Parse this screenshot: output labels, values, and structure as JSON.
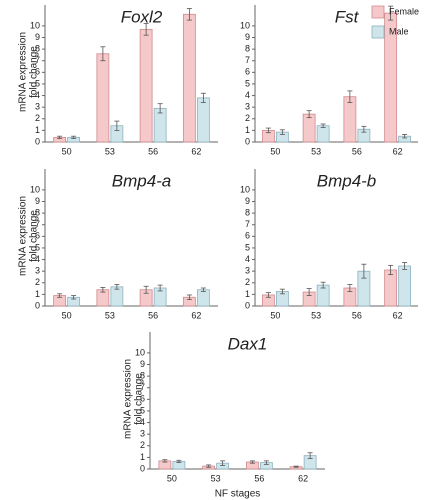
{
  "chart_data": [
    {
      "type": "bar",
      "title": "Foxl2",
      "ylabel": [
        "mRNA expression",
        "fold change"
      ],
      "categories": [
        "50",
        "53",
        "56",
        "62"
      ],
      "series": [
        {
          "name": "Female",
          "color": "#f5c8ca",
          "values": [
            0.4,
            7.6,
            9.7,
            11.0
          ],
          "errors": [
            0.1,
            0.6,
            0.5,
            0.5
          ]
        },
        {
          "name": "Male",
          "color": "#cfe5ec",
          "values": [
            0.4,
            1.4,
            2.9,
            3.8
          ],
          "errors": [
            0.1,
            0.4,
            0.4,
            0.4
          ]
        }
      ],
      "ylim": [
        0,
        11.8
      ],
      "yticks": [
        0,
        1,
        2,
        3,
        4,
        5,
        6,
        7,
        8,
        9,
        10
      ]
    },
    {
      "type": "bar",
      "title": "Fst",
      "categories": [
        "50",
        "53",
        "56",
        "62"
      ],
      "legend": "upper right",
      "series": [
        {
          "name": "Female",
          "color": "#f5c8ca",
          "values": [
            1.0,
            2.4,
            3.9,
            11.1
          ],
          "errors": [
            0.2,
            0.3,
            0.5,
            0.6
          ]
        },
        {
          "name": "Male",
          "color": "#cfe5ec",
          "values": [
            0.85,
            1.4,
            1.1,
            0.5
          ],
          "errors": [
            0.2,
            0.15,
            0.25,
            0.15
          ]
        }
      ],
      "ylim": [
        0,
        11.8
      ],
      "yticks": [
        0,
        1,
        2,
        3,
        4,
        5,
        6,
        7,
        8,
        9,
        10
      ]
    },
    {
      "type": "bar",
      "title": "Bmp4-a",
      "ylabel": [
        "mRNA expression",
        "fold change"
      ],
      "categories": [
        "50",
        "53",
        "56",
        "62"
      ],
      "series": [
        {
          "name": "Female",
          "color": "#f5c8ca",
          "values": [
            0.9,
            1.4,
            1.4,
            0.75
          ],
          "errors": [
            0.15,
            0.2,
            0.3,
            0.2
          ]
        },
        {
          "name": "Male",
          "color": "#cfe5ec",
          "values": [
            0.75,
            1.65,
            1.55,
            1.4
          ],
          "errors": [
            0.15,
            0.2,
            0.25,
            0.15
          ]
        }
      ],
      "ylim": [
        0,
        11.8
      ],
      "yticks": [
        0,
        1,
        2,
        3,
        4,
        5,
        6,
        7,
        8,
        9,
        10
      ]
    },
    {
      "type": "bar",
      "title": "Bmp4-b",
      "categories": [
        "50",
        "53",
        "56",
        "62"
      ],
      "series": [
        {
          "name": "Female",
          "color": "#f5c8ca",
          "values": [
            0.95,
            1.2,
            1.55,
            3.1
          ],
          "errors": [
            0.2,
            0.3,
            0.3,
            0.4
          ]
        },
        {
          "name": "Male",
          "color": "#cfe5ec",
          "values": [
            1.25,
            1.8,
            3.0,
            3.45
          ],
          "errors": [
            0.2,
            0.25,
            0.6,
            0.3
          ]
        }
      ],
      "ylim": [
        0,
        11.8
      ],
      "yticks": [
        0,
        1,
        2,
        3,
        4,
        5,
        6,
        7,
        8,
        9,
        10
      ]
    },
    {
      "type": "bar",
      "title": "Dax1",
      "ylabel": [
        "mRNA expression",
        "fold change"
      ],
      "xlabel": "NF stages",
      "categories": [
        "50",
        "53",
        "56",
        "62"
      ],
      "series": [
        {
          "name": "Female",
          "color": "#f5c8ca",
          "values": [
            0.7,
            0.25,
            0.6,
            0.2
          ],
          "errors": [
            0.1,
            0.1,
            0.1,
            0.05
          ]
        },
        {
          "name": "Male",
          "color": "#cfe5ec",
          "values": [
            0.65,
            0.5,
            0.55,
            1.15
          ],
          "errors": [
            0.1,
            0.2,
            0.15,
            0.25
          ]
        }
      ],
      "ylim": [
        0,
        11.8
      ],
      "yticks": [
        0,
        1,
        2,
        3,
        4,
        5,
        6,
        7,
        8,
        9,
        10
      ]
    }
  ]
}
